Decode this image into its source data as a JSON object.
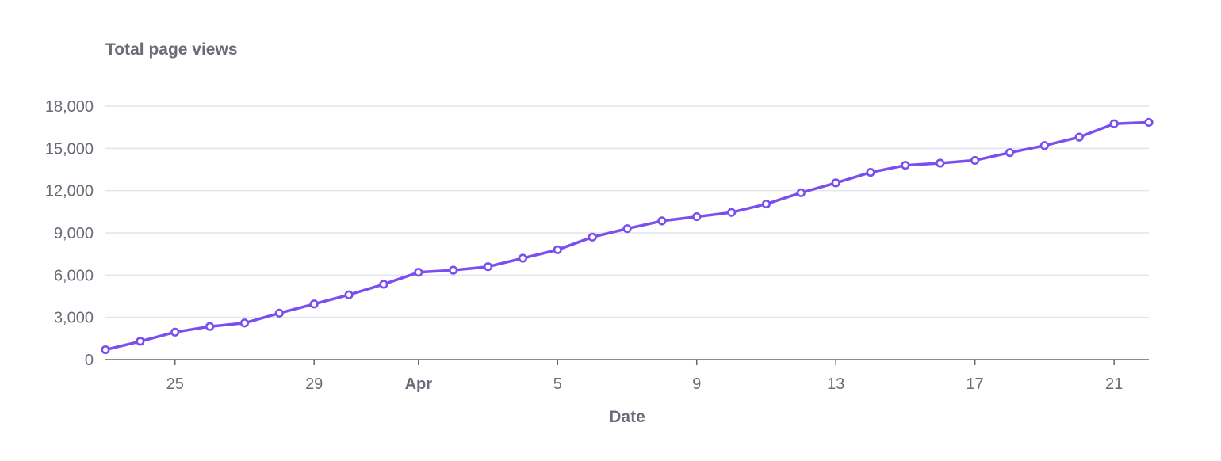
{
  "chart_data": {
    "type": "line",
    "title": "Total page views",
    "xlabel": "Date",
    "ylabel": "",
    "x_start": "2024-03-23",
    "x_end": "2024-04-22",
    "x_ticks": [
      {
        "date": "2024-03-25",
        "label": "25",
        "bold": false
      },
      {
        "date": "2024-03-29",
        "label": "29",
        "bold": false
      },
      {
        "date": "2024-04-01",
        "label": "Apr",
        "bold": true
      },
      {
        "date": "2024-04-05",
        "label": "5",
        "bold": false
      },
      {
        "date": "2024-04-09",
        "label": "9",
        "bold": false
      },
      {
        "date": "2024-04-13",
        "label": "13",
        "bold": false
      },
      {
        "date": "2024-04-17",
        "label": "17",
        "bold": false
      },
      {
        "date": "2024-04-21",
        "label": "21",
        "bold": false
      }
    ],
    "y_ticks": [
      {
        "value": 0,
        "label": "0"
      },
      {
        "value": 3000,
        "label": "3,000"
      },
      {
        "value": 6000,
        "label": "6,000"
      },
      {
        "value": 9000,
        "label": "9,000"
      },
      {
        "value": 12000,
        "label": "12,000"
      },
      {
        "value": 15000,
        "label": "15,000"
      },
      {
        "value": 18000,
        "label": "18,000"
      }
    ],
    "ylim": [
      0,
      18000
    ],
    "grid": true,
    "legend": "none",
    "series": [
      {
        "color": "#7b4fef",
        "points": [
          {
            "x": "2024-03-23",
            "y": 700
          },
          {
            "x": "2024-03-24",
            "y": 1300
          },
          {
            "x": "2024-03-25",
            "y": 1950
          },
          {
            "x": "2024-03-26",
            "y": 2350
          },
          {
            "x": "2024-03-27",
            "y": 2600
          },
          {
            "x": "2024-03-28",
            "y": 3300
          },
          {
            "x": "2024-03-29",
            "y": 3950
          },
          {
            "x": "2024-03-30",
            "y": 4600
          },
          {
            "x": "2024-03-31",
            "y": 5350
          },
          {
            "x": "2024-04-01",
            "y": 6200
          },
          {
            "x": "2024-04-02",
            "y": 6350
          },
          {
            "x": "2024-04-03",
            "y": 6600
          },
          {
            "x": "2024-04-04",
            "y": 7200
          },
          {
            "x": "2024-04-05",
            "y": 7800
          },
          {
            "x": "2024-04-06",
            "y": 8700
          },
          {
            "x": "2024-04-07",
            "y": 9300
          },
          {
            "x": "2024-04-08",
            "y": 9850
          },
          {
            "x": "2024-04-09",
            "y": 10150
          },
          {
            "x": "2024-04-10",
            "y": 10450
          },
          {
            "x": "2024-04-11",
            "y": 11050
          },
          {
            "x": "2024-04-12",
            "y": 11850
          },
          {
            "x": "2024-04-13",
            "y": 12550
          },
          {
            "x": "2024-04-14",
            "y": 13300
          },
          {
            "x": "2024-04-15",
            "y": 13800
          },
          {
            "x": "2024-04-16",
            "y": 13950
          },
          {
            "x": "2024-04-17",
            "y": 14150
          },
          {
            "x": "2024-04-18",
            "y": 14700
          },
          {
            "x": "2024-04-19",
            "y": 15200
          },
          {
            "x": "2024-04-20",
            "y": 15800
          },
          {
            "x": "2024-04-21",
            "y": 16750
          },
          {
            "x": "2024-04-22",
            "y": 16850
          }
        ]
      }
    ],
    "colors": {
      "line": "#7b4fef",
      "marker_fill": "#ffffff",
      "gridline": "#e3e3ef",
      "axis": "#666666",
      "text": "#6b6b78"
    }
  }
}
